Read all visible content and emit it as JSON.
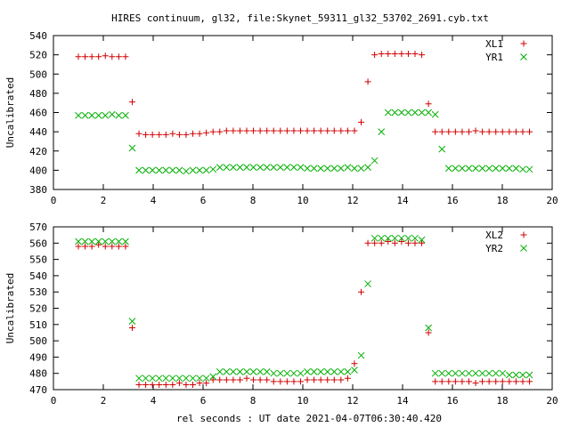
{
  "title": "HIRES continuum, gl32, file:Skynet_59311_gl32_53702_2691.cyb.txt",
  "colors": {
    "axes": "#000000",
    "red": "#d00000",
    "green": "#00b000"
  },
  "chart_data": [
    {
      "type": "scatter",
      "ylabel": "Uncalibrated",
      "xlabel": "",
      "xlim": [
        0,
        20
      ],
      "ylim": [
        380,
        540
      ],
      "xticks": [
        0,
        2,
        4,
        6,
        8,
        10,
        12,
        14,
        16,
        18,
        20
      ],
      "yticks": [
        380,
        400,
        420,
        440,
        460,
        480,
        500,
        520,
        540
      ],
      "legend": "top-right",
      "x": [
        1.0,
        1.27,
        1.54,
        1.81,
        2.08,
        2.35,
        2.62,
        2.89,
        3.16,
        3.43,
        3.7,
        3.97,
        4.24,
        4.51,
        4.78,
        5.05,
        5.32,
        5.59,
        5.86,
        6.13,
        6.4,
        6.67,
        6.94,
        7.21,
        7.48,
        7.75,
        8.02,
        8.29,
        8.56,
        8.83,
        9.1,
        9.37,
        9.64,
        9.91,
        10.18,
        10.45,
        10.72,
        10.99,
        11.26,
        11.53,
        11.8,
        12.07,
        12.34,
        12.61,
        12.88,
        13.15,
        13.42,
        13.69,
        13.96,
        14.23,
        14.5,
        14.77,
        15.04,
        15.31,
        15.58,
        15.85,
        16.12,
        16.39,
        16.66,
        16.93,
        17.2,
        17.47,
        17.74,
        18.01,
        18.28,
        18.55,
        18.82,
        19.09
      ],
      "series": [
        {
          "name": "XL1",
          "marker": "plus",
          "color": "red",
          "values": [
            518,
            518,
            518,
            518,
            519,
            518,
            518,
            518,
            471,
            438,
            437,
            437,
            437,
            437,
            438,
            437,
            437,
            438,
            438,
            439,
            440,
            440,
            441,
            441,
            441,
            441,
            441,
            441,
            441,
            441,
            441,
            441,
            441,
            441,
            441,
            441,
            441,
            441,
            441,
            441,
            441,
            441,
            450,
            492,
            520,
            521,
            521,
            521,
            521,
            521,
            521,
            520,
            469,
            440,
            440,
            440,
            440,
            440,
            440,
            441,
            440,
            440,
            440,
            440,
            440,
            440,
            440,
            440
          ]
        },
        {
          "name": "YR1",
          "marker": "cross",
          "color": "green",
          "values": [
            457,
            457,
            457,
            457,
            457,
            458,
            457,
            457,
            423,
            400,
            400,
            400,
            400,
            400,
            400,
            400,
            399,
            400,
            400,
            400,
            401,
            403,
            403,
            403,
            403,
            403,
            403,
            403,
            403,
            403,
            403,
            403,
            403,
            403,
            402,
            402,
            402,
            402,
            402,
            402,
            403,
            402,
            402,
            403,
            410,
            440,
            460,
            460,
            460,
            460,
            460,
            460,
            460,
            458,
            422,
            402,
            402,
            402,
            402,
            402,
            402,
            402,
            402,
            402,
            402,
            402,
            401,
            401
          ]
        }
      ]
    },
    {
      "type": "scatter",
      "ylabel": "Uncalibrated",
      "xlabel": "rel seconds : UT date 2021-04-07T06:30:40.420",
      "xlim": [
        0,
        20
      ],
      "ylim": [
        470,
        570
      ],
      "xticks": [
        0,
        2,
        4,
        6,
        8,
        10,
        12,
        14,
        16,
        18,
        20
      ],
      "yticks": [
        470,
        480,
        490,
        500,
        510,
        520,
        530,
        540,
        550,
        560,
        570
      ],
      "legend": "top-right",
      "x": [
        1.0,
        1.27,
        1.54,
        1.81,
        2.08,
        2.35,
        2.62,
        2.89,
        3.16,
        3.43,
        3.7,
        3.97,
        4.24,
        4.51,
        4.78,
        5.05,
        5.32,
        5.59,
        5.86,
        6.13,
        6.4,
        6.67,
        6.94,
        7.21,
        7.48,
        7.75,
        8.02,
        8.29,
        8.56,
        8.83,
        9.1,
        9.37,
        9.64,
        9.91,
        10.18,
        10.45,
        10.72,
        10.99,
        11.26,
        11.53,
        11.8,
        12.07,
        12.34,
        12.61,
        12.88,
        13.15,
        13.42,
        13.69,
        13.96,
        14.23,
        14.5,
        14.77,
        15.04,
        15.31,
        15.58,
        15.85,
        16.12,
        16.39,
        16.66,
        16.93,
        17.2,
        17.47,
        17.74,
        18.01,
        18.28,
        18.55,
        18.82,
        19.09
      ],
      "series": [
        {
          "name": "XL2",
          "marker": "plus",
          "color": "red",
          "values": [
            558,
            558,
            558,
            559,
            558,
            558,
            558,
            558,
            508,
            473,
            473,
            473,
            473,
            473,
            473,
            474,
            473,
            473,
            474,
            474,
            476,
            476,
            476,
            476,
            476,
            477,
            476,
            476,
            476,
            475,
            475,
            475,
            475,
            475,
            476,
            476,
            476,
            476,
            476,
            476,
            477,
            486,
            530,
            560,
            560,
            560,
            561,
            560,
            561,
            560,
            560,
            560,
            505,
            475,
            475,
            475,
            475,
            475,
            475,
            474,
            475,
            475,
            475,
            475,
            475,
            475,
            475,
            475
          ]
        },
        {
          "name": "YR2",
          "marker": "cross",
          "color": "green",
          "values": [
            561,
            561,
            561,
            561,
            561,
            561,
            561,
            561,
            512,
            477,
            477,
            477,
            477,
            477,
            477,
            477,
            477,
            477,
            477,
            477,
            478,
            481,
            481,
            481,
            481,
            481,
            481,
            481,
            481,
            480,
            480,
            480,
            480,
            480,
            481,
            481,
            481,
            481,
            481,
            481,
            481,
            482,
            491,
            535,
            563,
            563,
            563,
            563,
            563,
            563,
            563,
            562,
            508,
            480,
            480,
            480,
            480,
            480,
            480,
            480,
            480,
            480,
            480,
            480,
            479,
            479,
            479,
            479
          ]
        }
      ]
    }
  ]
}
